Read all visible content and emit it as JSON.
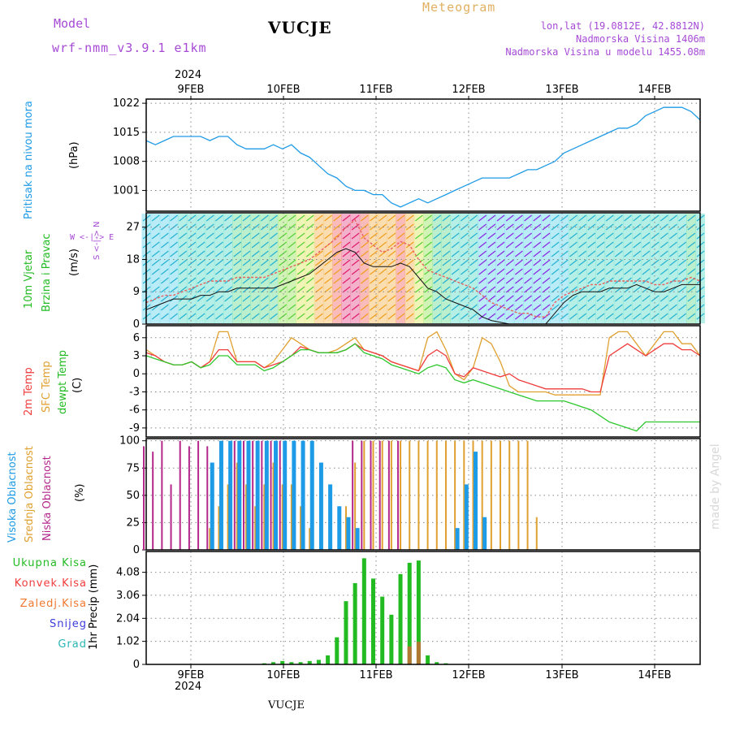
{
  "header": {
    "model_label": "Model",
    "model_name": "wrf-nmm_v3.9.1 e1km",
    "title": "VUCJE",
    "chart_kind": "Meteogram",
    "coords": "lon,lat (19.0812E, 42.8812N)",
    "altitude": "Nadmorska Visina 1406m",
    "model_altitude": "Nadmorska Visina u modelu 1455.08m",
    "watermark": "made by Angel",
    "footer_station": "VUCJE"
  },
  "dates": {
    "top_year": "2024",
    "bottom_year": "2024",
    "days": [
      "9FEB",
      "10FEB",
      "11FEB",
      "12FEB",
      "13FEB",
      "14FEB"
    ]
  },
  "panels": {
    "pressure": {
      "title": "Pritisak na nivou mora",
      "unit": "(hPa)",
      "ticks": [
        "1022",
        "1015",
        "1008",
        "1001"
      ],
      "color": "#1e9be6"
    },
    "wind": {
      "title_1": "10m Vjetar",
      "title_2": "Brzina i Pravac",
      "unit": "(m/s)",
      "ticks": [
        "27",
        "18",
        "9",
        "0"
      ],
      "compass": "W <-|-> E",
      "compass_v": "S <-|-> N"
    },
    "temp": {
      "label_2m": "2m Temp",
      "label_sfc": "SFC Temp",
      "label_dew": "dewpt Temp",
      "unit": "(C)",
      "ticks": [
        "6",
        "3",
        "0",
        "-3",
        "-6",
        "-9"
      ],
      "colors": {
        "t2m": "#f03c3c",
        "sfc": "#e0a030",
        "dew": "#2ec82e"
      }
    },
    "cloud": {
      "label_high": "Visoka Oblacnost",
      "label_mid": "Srednja Oblacnost",
      "label_low": "Niska Oblacnost",
      "unit": "(%)",
      "ticks": [
        "100",
        "75",
        "50",
        "25",
        "0"
      ],
      "colors": {
        "high": "#1e9be6",
        "mid": "#e0a030",
        "low": "#b4288c"
      }
    },
    "precip": {
      "legend": [
        "Ukupna Kisa",
        "Konvek.Kisa",
        "Zaledj.Kisa",
        "Snijeg",
        "Grad"
      ],
      "legend_colors": [
        "#22bb22",
        "#f03c3c",
        "#f07830",
        "#3c3cdc",
        "#28b4b4"
      ],
      "unit": "1hr Precip (mm)",
      "ticks": [
        "4.08",
        "3.06",
        "2.04",
        "1.02",
        "0"
      ]
    }
  },
  "chart_data": {
    "type": "line",
    "x_start": "2024-02-08 12:00",
    "x_end": "2024-02-14 12:00",
    "x_step_hours": 3,
    "pressure_hpa": [
      1013,
      1012,
      1013,
      1014,
      1014,
      1014,
      1014,
      1013,
      1014,
      1014,
      1012,
      1011,
      1011,
      1011,
      1012,
      1011,
      1012,
      1010,
      1009,
      1007,
      1005,
      1004,
      1002,
      1001,
      1001,
      1000,
      1000,
      998,
      997,
      998,
      999,
      998,
      999,
      1000,
      1001,
      1002,
      1003,
      1004,
      1004,
      1004,
      1004,
      1005,
      1006,
      1006,
      1007,
      1008,
      1010,
      1011,
      1012,
      1013,
      1014,
      1015,
      1016,
      1016,
      1017,
      1019,
      1020,
      1021,
      1021,
      1021,
      1020,
      1018
    ],
    "wind_speed_ms": [
      4,
      5,
      6,
      7,
      7,
      7,
      8,
      8,
      9,
      9,
      10,
      10,
      10,
      10,
      10,
      11,
      12,
      13,
      14,
      16,
      18,
      20,
      21,
      20,
      17,
      16,
      16,
      16,
      17,
      16,
      13,
      10,
      9,
      7,
      6,
      5,
      4,
      2,
      1,
      0.5,
      0,
      0,
      0,
      0,
      0,
      3,
      6,
      8,
      9,
      9,
      9,
      10,
      10,
      10,
      11,
      10,
      9,
      9,
      10,
      11,
      11,
      11
    ],
    "wind_gust_ms": [
      6,
      7,
      8,
      8,
      9,
      10,
      11,
      12,
      12,
      12,
      13,
      13,
      13,
      13,
      14,
      15,
      16,
      17,
      18,
      20,
      22,
      24,
      27,
      29,
      24,
      22,
      20,
      21,
      23,
      22,
      18,
      15,
      14,
      13,
      12,
      11,
      10,
      8,
      6,
      5,
      4,
      3,
      3,
      2,
      2,
      6,
      8,
      9,
      10,
      11,
      11,
      12,
      12,
      12,
      12,
      12,
      11,
      11,
      12,
      12,
      13,
      12
    ],
    "temp_2m_c": [
      3.5,
      3,
      2,
      1.5,
      1.5,
      2,
      1,
      2,
      4,
      4,
      2,
      2,
      2,
      1,
      1.5,
      2,
      3,
      4.5,
      4,
      3.5,
      3.5,
      3.5,
      4,
      5,
      4,
      3.5,
      3,
      2,
      1.5,
      1,
      0.5,
      3,
      4,
      3,
      0,
      -0.5,
      1,
      0.5,
      0,
      -0.5,
      0,
      -1,
      -1.5,
      -2,
      -2.5,
      -2.5,
      -2.5,
      -2.5,
      -2.5,
      -3,
      -3,
      3,
      4,
      5,
      4,
      3,
      4,
      5,
      5,
      4,
      4,
      3
    ],
    "temp_sfc_c": [
      4,
      3,
      2,
      1.5,
      1.5,
      2,
      1,
      2,
      7,
      7,
      2,
      2,
      2,
      1,
      2,
      4,
      6,
      5,
      4,
      3.5,
      3.5,
      4,
      5,
      6,
      4,
      3.5,
      3,
      2,
      1.5,
      1,
      0.5,
      6,
      7,
      4,
      0,
      -1,
      1,
      6,
      5,
      2,
      -2,
      -3,
      -3,
      -3,
      -3,
      -3.5,
      -3.5,
      -3.5,
      -3.5,
      -3.5,
      -3.5,
      6,
      7,
      7,
      5,
      3,
      5,
      7,
      7,
      5,
      5,
      3
    ],
    "dewpoint_c": [
      3,
      2.5,
      2,
      1.5,
      1.5,
      2,
      1,
      1.5,
      3,
      3,
      1.5,
      1.5,
      1.5,
      0.5,
      1,
      2,
      3,
      4,
      4,
      3.5,
      3.5,
      3.5,
      4,
      5,
      3.5,
      3,
      2.5,
      1.5,
      1,
      0.5,
      0,
      1,
      1.5,
      1,
      -1,
      -1.5,
      -1,
      -1.5,
      -2,
      -2.5,
      -3,
      -3.5,
      -4,
      -4.5,
      -4.5,
      -4.5,
      -4.5,
      -5,
      -5.5,
      -6,
      -7,
      -8,
      -8.5,
      -9,
      -9.5,
      -8,
      -8,
      -8,
      -8,
      -8,
      -8,
      -8
    ],
    "cloud_high_pct": [
      0,
      0,
      0,
      0,
      0,
      0,
      0,
      80,
      100,
      100,
      100,
      100,
      100,
      100,
      100,
      100,
      100,
      100,
      100,
      80,
      60,
      40,
      30,
      20,
      0,
      0,
      0,
      0,
      0,
      0,
      0,
      0,
      0,
      0,
      20,
      60,
      90,
      30,
      0,
      0,
      0,
      0,
      0,
      0,
      0,
      0,
      0,
      0,
      0,
      0,
      0,
      0,
      0,
      0,
      0,
      0,
      0,
      0,
      0,
      0,
      0,
      0
    ],
    "cloud_mid_pct": [
      0,
      0,
      0,
      0,
      0,
      0,
      0,
      20,
      40,
      60,
      80,
      60,
      40,
      60,
      80,
      60,
      60,
      40,
      20,
      0,
      0,
      0,
      40,
      80,
      100,
      100,
      100,
      100,
      100,
      100,
      100,
      100,
      100,
      100,
      100,
      100,
      100,
      100,
      100,
      100,
      100,
      100,
      100,
      30,
      0,
      0,
      0,
      0,
      0,
      0,
      0,
      0,
      0,
      0,
      0,
      0,
      0,
      0,
      0,
      0,
      0,
      0
    ],
    "cloud_low_pct": [
      95,
      90,
      100,
      60,
      100,
      95,
      100,
      95,
      0,
      0,
      100,
      100,
      100,
      100,
      100,
      100,
      0,
      0,
      0,
      0,
      0,
      0,
      0,
      100,
      100,
      100,
      100,
      100,
      100,
      0,
      0,
      0,
      0,
      0,
      0,
      0,
      0,
      0,
      0,
      0,
      0,
      0,
      0,
      0,
      0,
      0,
      0,
      0,
      0,
      0,
      0,
      0,
      0,
      0,
      0,
      0,
      0,
      0,
      0,
      0,
      0,
      0
    ],
    "precip_total_mm": [
      0,
      0,
      0,
      0,
      0,
      0,
      0,
      0,
      0,
      0,
      0,
      0,
      0,
      0.05,
      0.1,
      0.15,
      0.1,
      0.1,
      0.15,
      0.2,
      0.4,
      1.2,
      2.8,
      3.6,
      4.7,
      3.8,
      3.0,
      2.2,
      4.0,
      4.5,
      4.6,
      0.4,
      0.1,
      0.05,
      0,
      0,
      0,
      0,
      0,
      0,
      0,
      0,
      0,
      0,
      0,
      0,
      0,
      0,
      0,
      0,
      0,
      0,
      0,
      0,
      0,
      0,
      0,
      0,
      0,
      0,
      0,
      0
    ],
    "precip_convective_mm": [
      0,
      0,
      0,
      0,
      0,
      0,
      0,
      0,
      0,
      0,
      0,
      0,
      0,
      0,
      0,
      0,
      0,
      0,
      0,
      0,
      0,
      0,
      0,
      0,
      0,
      0,
      0,
      0,
      0,
      0.8,
      1.0,
      0,
      0,
      0,
      0,
      0,
      0,
      0,
      0,
      0,
      0,
      0,
      0,
      0,
      0,
      0,
      0,
      0,
      0,
      0,
      0,
      0,
      0,
      0,
      0,
      0,
      0,
      0,
      0,
      0,
      0,
      0
    ],
    "ylim_pressure": [
      996,
      1023
    ],
    "ylim_wind": [
      0,
      31
    ],
    "ylim_temp": [
      -10.5,
      8
    ],
    "ylim_cloud": [
      0,
      102
    ],
    "ylim_precip": [
      0,
      5.0
    ]
  }
}
